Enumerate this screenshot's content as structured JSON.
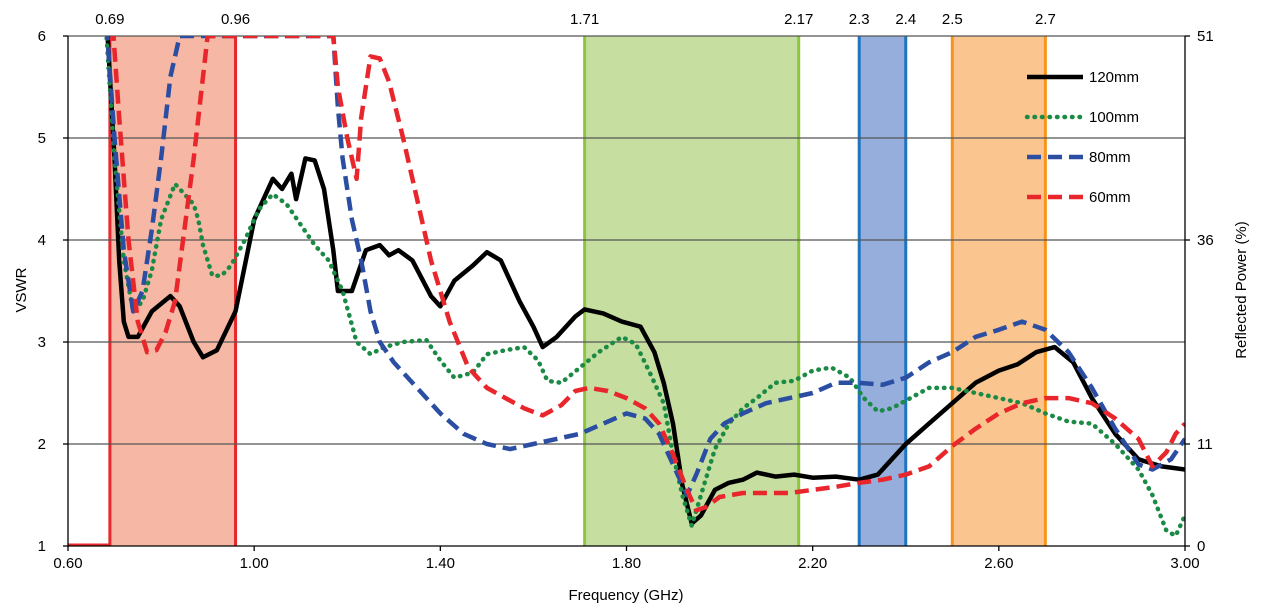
{
  "chart_data": {
    "type": "line",
    "xlabel": "Frequency (GHz)",
    "ylabel": "VSWR",
    "y2label": "Reflected Power (%)",
    "xlim": [
      0.6,
      3.0
    ],
    "ylim": [
      1,
      6
    ],
    "xticks": [
      "0.60",
      "1.00",
      "1.40",
      "1.80",
      "2.20",
      "2.60",
      "3.00"
    ],
    "yticks": [
      "1",
      "2",
      "3",
      "4",
      "5",
      "6"
    ],
    "y2ticks": [
      {
        "label": "0",
        "vswr": 1
      },
      {
        "label": "11",
        "vswr": 2
      },
      {
        "label": "36",
        "vswr": 4
      },
      {
        "label": "51",
        "vswr": 6
      }
    ],
    "grid": "horizontal",
    "legend_position": "top-right",
    "bands": [
      {
        "from": 0.69,
        "to": 0.96,
        "label_from": "0.69",
        "label_to": "0.96",
        "fill": "#f6b8a4",
        "edge": "#e8262b"
      },
      {
        "from": 1.71,
        "to": 2.17,
        "label_from": "1.71",
        "label_to": "2.17",
        "fill": "#c6dea0",
        "edge": "#8cc63f"
      },
      {
        "from": 2.3,
        "to": 2.4,
        "label_from": "2.3",
        "label_to": "2.4",
        "fill": "#95aedb",
        "edge": "#1f74c0"
      },
      {
        "from": 2.5,
        "to": 2.7,
        "label_from": "2.5",
        "label_to": "2.7",
        "fill": "#fac58f",
        "edge": "#f7941d"
      }
    ],
    "series": [
      {
        "name": "120mm",
        "color": "#000000",
        "style": "solid",
        "points": [
          [
            0.66,
            6.5
          ],
          [
            0.685,
            6.0
          ],
          [
            0.7,
            4.8
          ],
          [
            0.71,
            3.8
          ],
          [
            0.72,
            3.2
          ],
          [
            0.73,
            3.05
          ],
          [
            0.75,
            3.05
          ],
          [
            0.78,
            3.3
          ],
          [
            0.82,
            3.45
          ],
          [
            0.84,
            3.35
          ],
          [
            0.87,
            3.0
          ],
          [
            0.89,
            2.85
          ],
          [
            0.92,
            2.92
          ],
          [
            0.96,
            3.3
          ],
          [
            1.0,
            4.2
          ],
          [
            1.04,
            4.6
          ],
          [
            1.06,
            4.5
          ],
          [
            1.08,
            4.65
          ],
          [
            1.09,
            4.4
          ],
          [
            1.11,
            4.8
          ],
          [
            1.13,
            4.78
          ],
          [
            1.15,
            4.5
          ],
          [
            1.17,
            3.9
          ],
          [
            1.18,
            3.5
          ],
          [
            1.21,
            3.5
          ],
          [
            1.24,
            3.9
          ],
          [
            1.27,
            3.95
          ],
          [
            1.29,
            3.85
          ],
          [
            1.31,
            3.9
          ],
          [
            1.34,
            3.8
          ],
          [
            1.38,
            3.45
          ],
          [
            1.4,
            3.35
          ],
          [
            1.43,
            3.6
          ],
          [
            1.47,
            3.75
          ],
          [
            1.5,
            3.88
          ],
          [
            1.53,
            3.8
          ],
          [
            1.57,
            3.4
          ],
          [
            1.6,
            3.15
          ],
          [
            1.62,
            2.95
          ],
          [
            1.65,
            3.05
          ],
          [
            1.69,
            3.25
          ],
          [
            1.71,
            3.32
          ],
          [
            1.75,
            3.28
          ],
          [
            1.79,
            3.2
          ],
          [
            1.83,
            3.15
          ],
          [
            1.86,
            2.9
          ],
          [
            1.88,
            2.6
          ],
          [
            1.9,
            2.2
          ],
          [
            1.92,
            1.6
          ],
          [
            1.94,
            1.22
          ],
          [
            1.96,
            1.3
          ],
          [
            1.99,
            1.55
          ],
          [
            2.02,
            1.62
          ],
          [
            2.05,
            1.65
          ],
          [
            2.08,
            1.72
          ],
          [
            2.12,
            1.68
          ],
          [
            2.16,
            1.7
          ],
          [
            2.2,
            1.67
          ],
          [
            2.25,
            1.68
          ],
          [
            2.3,
            1.65
          ],
          [
            2.34,
            1.7
          ],
          [
            2.37,
            1.85
          ],
          [
            2.4,
            2.0
          ],
          [
            2.45,
            2.2
          ],
          [
            2.5,
            2.4
          ],
          [
            2.55,
            2.6
          ],
          [
            2.6,
            2.72
          ],
          [
            2.64,
            2.78
          ],
          [
            2.68,
            2.9
          ],
          [
            2.72,
            2.95
          ],
          [
            2.76,
            2.8
          ],
          [
            2.8,
            2.45
          ],
          [
            2.85,
            2.1
          ],
          [
            2.9,
            1.85
          ],
          [
            2.95,
            1.78
          ],
          [
            3.0,
            1.75
          ]
        ]
      },
      {
        "name": "100mm",
        "color": "#1a8a44",
        "style": "dotted",
        "points": [
          [
            0.68,
            6.2
          ],
          [
            0.7,
            4.8
          ],
          [
            0.72,
            3.8
          ],
          [
            0.74,
            3.3
          ],
          [
            0.76,
            3.4
          ],
          [
            0.78,
            3.7
          ],
          [
            0.8,
            4.2
          ],
          [
            0.83,
            4.55
          ],
          [
            0.85,
            4.45
          ],
          [
            0.87,
            4.35
          ],
          [
            0.88,
            4.2
          ],
          [
            0.89,
            3.95
          ],
          [
            0.91,
            3.65
          ],
          [
            0.93,
            3.65
          ],
          [
            0.95,
            3.75
          ],
          [
            0.98,
            4.0
          ],
          [
            1.01,
            4.3
          ],
          [
            1.04,
            4.45
          ],
          [
            1.07,
            4.35
          ],
          [
            1.1,
            4.15
          ],
          [
            1.13,
            3.95
          ],
          [
            1.16,
            3.8
          ],
          [
            1.19,
            3.5
          ],
          [
            1.22,
            3.0
          ],
          [
            1.25,
            2.88
          ],
          [
            1.28,
            2.95
          ],
          [
            1.32,
            3.0
          ],
          [
            1.37,
            3.02
          ],
          [
            1.4,
            2.82
          ],
          [
            1.43,
            2.65
          ],
          [
            1.47,
            2.7
          ],
          [
            1.5,
            2.88
          ],
          [
            1.54,
            2.92
          ],
          [
            1.58,
            2.95
          ],
          [
            1.61,
            2.82
          ],
          [
            1.63,
            2.62
          ],
          [
            1.66,
            2.6
          ],
          [
            1.7,
            2.75
          ],
          [
            1.74,
            2.9
          ],
          [
            1.79,
            3.05
          ],
          [
            1.82,
            2.98
          ],
          [
            1.85,
            2.7
          ],
          [
            1.88,
            2.4
          ],
          [
            1.9,
            1.9
          ],
          [
            1.92,
            1.5
          ],
          [
            1.94,
            1.2
          ],
          [
            1.96,
            1.5
          ],
          [
            1.99,
            1.95
          ],
          [
            2.02,
            2.2
          ],
          [
            2.05,
            2.35
          ],
          [
            2.08,
            2.45
          ],
          [
            2.12,
            2.6
          ],
          [
            2.16,
            2.62
          ],
          [
            2.2,
            2.72
          ],
          [
            2.24,
            2.75
          ],
          [
            2.28,
            2.65
          ],
          [
            2.31,
            2.45
          ],
          [
            2.34,
            2.32
          ],
          [
            2.37,
            2.35
          ],
          [
            2.41,
            2.45
          ],
          [
            2.45,
            2.55
          ],
          [
            2.5,
            2.55
          ],
          [
            2.55,
            2.5
          ],
          [
            2.6,
            2.45
          ],
          [
            2.65,
            2.4
          ],
          [
            2.7,
            2.3
          ],
          [
            2.75,
            2.22
          ],
          [
            2.8,
            2.2
          ],
          [
            2.85,
            2.0
          ],
          [
            2.9,
            1.75
          ],
          [
            2.93,
            1.5
          ],
          [
            2.96,
            1.15
          ],
          [
            2.98,
            1.1
          ],
          [
            3.0,
            1.3
          ]
        ]
      },
      {
        "name": "80mm",
        "color": "#2b4ea3",
        "style": "dashed",
        "points": [
          [
            0.68,
            6.3
          ],
          [
            0.7,
            5.0
          ],
          [
            0.72,
            3.9
          ],
          [
            0.74,
            3.3
          ],
          [
            0.76,
            3.5
          ],
          [
            0.78,
            4.1
          ],
          [
            0.8,
            4.8
          ],
          [
            0.82,
            5.6
          ],
          [
            0.84,
            6.0
          ],
          [
            1.17,
            6.0
          ],
          [
            1.18,
            5.3
          ],
          [
            1.19,
            4.8
          ],
          [
            1.21,
            4.2
          ],
          [
            1.23,
            3.8
          ],
          [
            1.25,
            3.3
          ],
          [
            1.27,
            3.0
          ],
          [
            1.3,
            2.8
          ],
          [
            1.35,
            2.55
          ],
          [
            1.4,
            2.3
          ],
          [
            1.45,
            2.1
          ],
          [
            1.5,
            2.0
          ],
          [
            1.55,
            1.95
          ],
          [
            1.6,
            2.0
          ],
          [
            1.65,
            2.05
          ],
          [
            1.7,
            2.1
          ],
          [
            1.75,
            2.2
          ],
          [
            1.8,
            2.3
          ],
          [
            1.84,
            2.25
          ],
          [
            1.87,
            2.1
          ],
          [
            1.9,
            1.8
          ],
          [
            1.93,
            1.5
          ],
          [
            1.95,
            1.7
          ],
          [
            1.98,
            2.05
          ],
          [
            2.01,
            2.2
          ],
          [
            2.05,
            2.3
          ],
          [
            2.1,
            2.4
          ],
          [
            2.15,
            2.45
          ],
          [
            2.2,
            2.5
          ],
          [
            2.25,
            2.6
          ],
          [
            2.3,
            2.6
          ],
          [
            2.35,
            2.58
          ],
          [
            2.4,
            2.65
          ],
          [
            2.45,
            2.8
          ],
          [
            2.5,
            2.9
          ],
          [
            2.55,
            3.05
          ],
          [
            2.6,
            3.12
          ],
          [
            2.65,
            3.2
          ],
          [
            2.7,
            3.12
          ],
          [
            2.75,
            2.9
          ],
          [
            2.8,
            2.55
          ],
          [
            2.85,
            2.15
          ],
          [
            2.9,
            1.8
          ],
          [
            2.93,
            1.75
          ],
          [
            2.97,
            1.85
          ],
          [
            3.0,
            2.05
          ]
        ]
      },
      {
        "name": "60mm",
        "color": "#e8262b",
        "style": "dashed",
        "points": [
          [
            0.69,
            6.5
          ],
          [
            0.71,
            5.2
          ],
          [
            0.73,
            4.0
          ],
          [
            0.75,
            3.2
          ],
          [
            0.77,
            2.9
          ],
          [
            0.79,
            2.92
          ],
          [
            0.81,
            3.1
          ],
          [
            0.83,
            3.4
          ],
          [
            0.85,
            4.1
          ],
          [
            0.87,
            4.8
          ],
          [
            0.89,
            5.6
          ],
          [
            0.9,
            6.0
          ],
          [
            1.17,
            6.0
          ],
          [
            1.18,
            5.5
          ],
          [
            1.2,
            5.0
          ],
          [
            1.22,
            4.6
          ],
          [
            1.23,
            5.2
          ],
          [
            1.25,
            5.8
          ],
          [
            1.27,
            5.78
          ],
          [
            1.29,
            5.55
          ],
          [
            1.32,
            5.0
          ],
          [
            1.35,
            4.4
          ],
          [
            1.38,
            3.8
          ],
          [
            1.42,
            3.2
          ],
          [
            1.46,
            2.75
          ],
          [
            1.5,
            2.55
          ],
          [
            1.54,
            2.45
          ],
          [
            1.58,
            2.35
          ],
          [
            1.62,
            2.28
          ],
          [
            1.66,
            2.38
          ],
          [
            1.69,
            2.52
          ],
          [
            1.72,
            2.55
          ],
          [
            1.76,
            2.52
          ],
          [
            1.8,
            2.45
          ],
          [
            1.84,
            2.35
          ],
          [
            1.87,
            2.2
          ],
          [
            1.9,
            1.9
          ],
          [
            1.93,
            1.55
          ],
          [
            1.95,
            1.35
          ],
          [
            1.97,
            1.38
          ],
          [
            2.0,
            1.48
          ],
          [
            2.05,
            1.52
          ],
          [
            2.1,
            1.52
          ],
          [
            2.15,
            1.52
          ],
          [
            2.2,
            1.55
          ],
          [
            2.25,
            1.58
          ],
          [
            2.3,
            1.62
          ],
          [
            2.35,
            1.65
          ],
          [
            2.4,
            1.7
          ],
          [
            2.45,
            1.78
          ],
          [
            2.5,
            1.98
          ],
          [
            2.55,
            2.15
          ],
          [
            2.6,
            2.3
          ],
          [
            2.65,
            2.4
          ],
          [
            2.7,
            2.45
          ],
          [
            2.75,
            2.45
          ],
          [
            2.8,
            2.4
          ],
          [
            2.85,
            2.25
          ],
          [
            2.9,
            2.05
          ],
          [
            2.93,
            1.78
          ],
          [
            2.96,
            1.92
          ],
          [
            2.98,
            2.1
          ],
          [
            3.0,
            2.2
          ]
        ]
      }
    ]
  }
}
